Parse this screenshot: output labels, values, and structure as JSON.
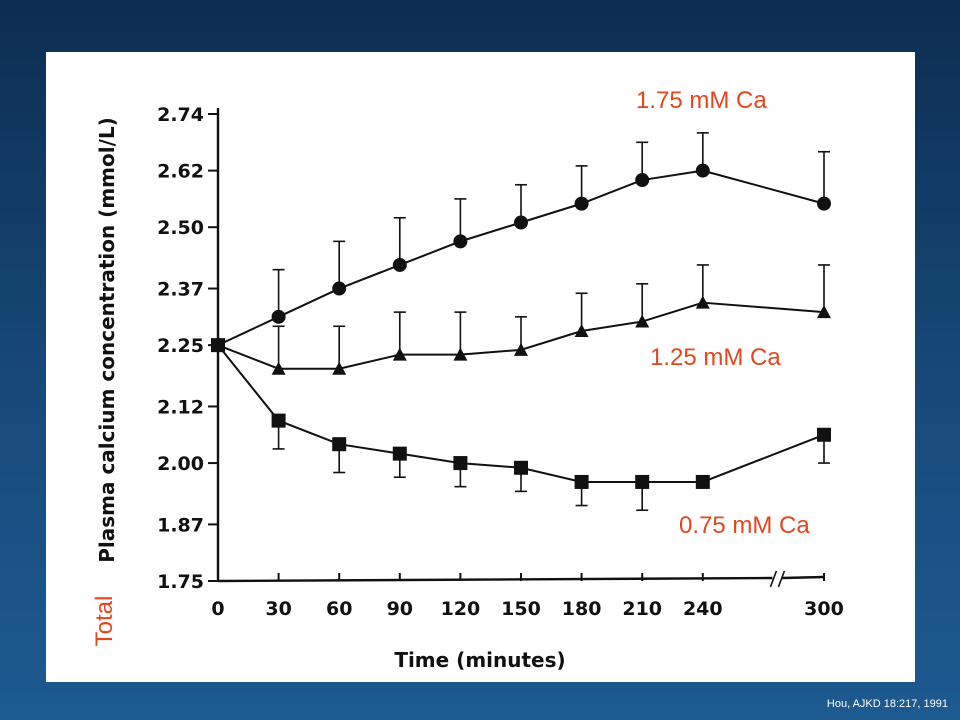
{
  "chart_data": {
    "type": "line",
    "xlabel": "Time (minutes)",
    "ylabel": "Plasma calcium concentration (mmol/L)",
    "ylabel_prefix": "Total",
    "x_ticks": [
      "0",
      "30",
      "60",
      "90",
      "120",
      "150",
      "180",
      "210",
      "240",
      "300"
    ],
    "y_ticks": [
      "1.75",
      "1.87",
      "2.00",
      "2.12",
      "2.25",
      "2.37",
      "2.50",
      "2.62",
      "2.74"
    ],
    "ylim": [
      1.75,
      2.74
    ],
    "x_axis_break": "between 240 and 300",
    "grid": false,
    "error_bars": true,
    "series": [
      {
        "name": "1.75 mM Ca",
        "marker": "circle",
        "x": [
          0,
          30,
          60,
          90,
          120,
          150,
          180,
          210,
          240,
          300
        ],
        "y": [
          2.25,
          2.31,
          2.37,
          2.42,
          2.47,
          2.51,
          2.55,
          2.6,
          2.62,
          2.55
        ],
        "error": [
          0,
          0.1,
          0.1,
          0.1,
          0.09,
          0.08,
          0.08,
          0.08,
          0.08,
          0.11
        ]
      },
      {
        "name": "1.25 mM Ca",
        "marker": "triangle",
        "x": [
          0,
          30,
          60,
          90,
          120,
          150,
          180,
          210,
          240,
          300
        ],
        "y": [
          2.25,
          2.2,
          2.2,
          2.23,
          2.23,
          2.24,
          2.28,
          2.3,
          2.34,
          2.32
        ],
        "error": [
          0,
          0.09,
          0.09,
          0.09,
          0.09,
          0.07,
          0.08,
          0.08,
          0.08,
          0.1
        ]
      },
      {
        "name": "0.75 mM Ca",
        "marker": "square",
        "x": [
          0,
          30,
          60,
          90,
          120,
          150,
          180,
          210,
          240,
          300
        ],
        "y": [
          2.25,
          2.09,
          2.04,
          2.02,
          2.0,
          1.99,
          1.96,
          1.96,
          1.96,
          2.06
        ],
        "error": [
          0,
          0.06,
          0.06,
          0.05,
          0.05,
          0.05,
          0.05,
          0.06,
          0,
          0.06
        ]
      }
    ]
  },
  "source": "Hou, AJKD 18:217, 1991",
  "colors": {
    "label_accent": "#e2471f",
    "ink": "#111111",
    "panel": "#ffffff"
  }
}
